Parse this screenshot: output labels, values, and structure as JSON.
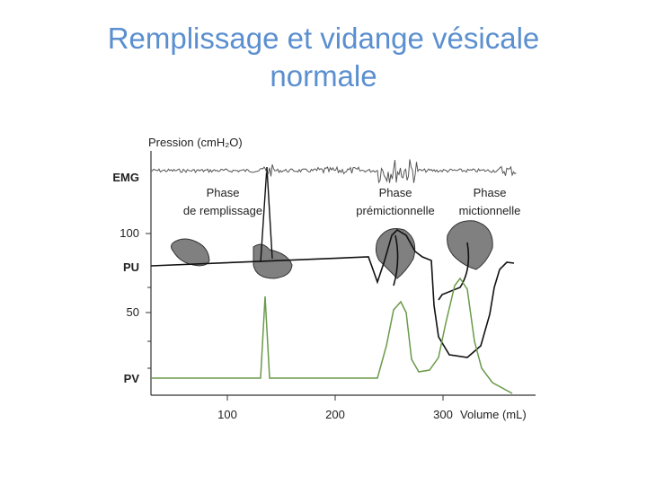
{
  "title": "Remplissage et vidange vésicale normale",
  "figure": {
    "y_axis_label": "Pression (cmH₂O)",
    "x_axis_label": "Volume (mL)",
    "traces": [
      "EMG",
      "PU",
      "PV"
    ],
    "yticks": [
      100,
      50
    ],
    "xticks": [
      100,
      200,
      300
    ],
    "phases": [
      [
        "Phase",
        "de remplissage"
      ],
      [
        "Phase",
        "prémictionnelle"
      ],
      [
        "Phase",
        "mictionnelle"
      ]
    ]
  }
}
